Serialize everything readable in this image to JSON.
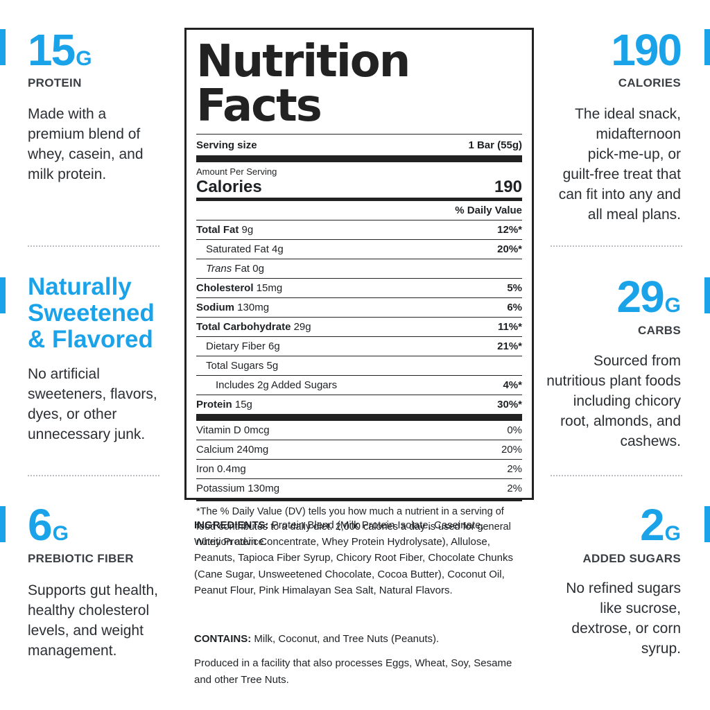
{
  "left": {
    "protein": {
      "value": "15",
      "unit": "G",
      "label": "PROTEIN",
      "desc": [
        "Made with a",
        "premium blend of",
        "whey, casein, and",
        "milk protein."
      ]
    },
    "sweet": {
      "headline": [
        "Naturally",
        "Sweetened",
        "& Flavored"
      ],
      "desc": [
        "No artificial",
        "sweeteners, flavors,",
        "dyes, or other",
        "unnecessary junk."
      ]
    },
    "fiber": {
      "value": "6",
      "unit": "G",
      "label": "PREBIOTIC FIBER",
      "desc": [
        "Supports gut health,",
        "healthy cholesterol",
        "levels, and weight",
        "management."
      ]
    }
  },
  "right": {
    "calories": {
      "value": "190",
      "unit": "",
      "label": "CALORIES",
      "desc": [
        "The ideal snack,",
        "midafternoon",
        "pick-me-up, or",
        "guilt-free treat that",
        "can fit into any and",
        "all meal plans."
      ]
    },
    "carbs": {
      "value": "29",
      "unit": "G",
      "label": "CARBS",
      "desc": [
        "Sourced from",
        "nutritious plant foods",
        "including chicory",
        "root, almonds, and",
        "cashews."
      ]
    },
    "sugars": {
      "value": "2",
      "unit": "G",
      "label": "ADDED SUGARS",
      "desc": [
        "No refined sugars",
        "like sucrose,",
        "dextrose, or corn",
        "syrup."
      ]
    }
  },
  "nutrition": {
    "title": "Nutrition Facts",
    "serving_label": "Serving size",
    "serving_value": "1 Bar (55g)",
    "amount_per": "Amount Per Serving",
    "calories_label": "Calories",
    "calories_value": "190",
    "dv_header": "% Daily Value",
    "rows": [
      {
        "bold": "Total Fat",
        "text": " 9g",
        "dv": "12%*",
        "indent": 0
      },
      {
        "bold": "",
        "text": "Saturated Fat 4g",
        "dv": "20%*",
        "indent": 1
      },
      {
        "bold": "",
        "italic": "Trans",
        "text": " Fat 0g",
        "dv": "",
        "indent": 1
      },
      {
        "bold": "Cholesterol",
        "text": " 15mg",
        "dv": "5%",
        "indent": 0
      },
      {
        "bold": "Sodium",
        "text": " 130mg",
        "dv": "6%",
        "indent": 0
      },
      {
        "bold": "Total Carbohydrate",
        "text": " 29g",
        "dv": "11%*",
        "indent": 0
      },
      {
        "bold": "",
        "text": "Dietary Fiber 6g",
        "dv": "21%*",
        "indent": 1
      },
      {
        "bold": "",
        "text": "Total Sugars 5g",
        "dv": "",
        "indent": 1
      },
      {
        "bold": "",
        "text": "Includes 2g Added Sugars",
        "dv": "4%*",
        "indent": 2
      },
      {
        "bold": "Protein",
        "text": " 15g",
        "dv": "30%*",
        "indent": 0
      }
    ],
    "vitamins": [
      {
        "text": "Vitamin D 0mcg",
        "dv": "0%"
      },
      {
        "text": "Calcium 240mg",
        "dv": "20%"
      },
      {
        "text": "Iron 0.4mg",
        "dv": "2%"
      },
      {
        "text": "Potassium 130mg",
        "dv": "2%"
      }
    ],
    "footnote": "*The % Daily Value (DV) tells you how much a nutrient in a serving of food contributes to a daily diet. 2,000 calories a day is used for general nutrition advice."
  },
  "ingredients": {
    "label": "INGREDIENTS:",
    "text": " Protein Blend (Milk Protein Isolate, Caseinate, Whey Protein Concentrate, Whey Protein Hydrolysate), Allulose, Peanuts, Tapioca Fiber Syrup, Chicory Root Fiber, Chocolate Chunks (Cane Sugar, Unsweetened Chocolate, Cocoa Butter), Coconut Oil, Peanut Flour, Pink Himalayan Sea Salt, Natural Flavors.",
    "contains_label": "CONTAINS:",
    "contains_text": " Milk, Coconut, and Tree Nuts (Peanuts).",
    "facility": "Produced in a facility that also processes Eggs, Wheat, Soy, Sesame and other Tree Nuts."
  },
  "colors": {
    "accent": "#1ba3ea",
    "text": "#2b2f33"
  }
}
